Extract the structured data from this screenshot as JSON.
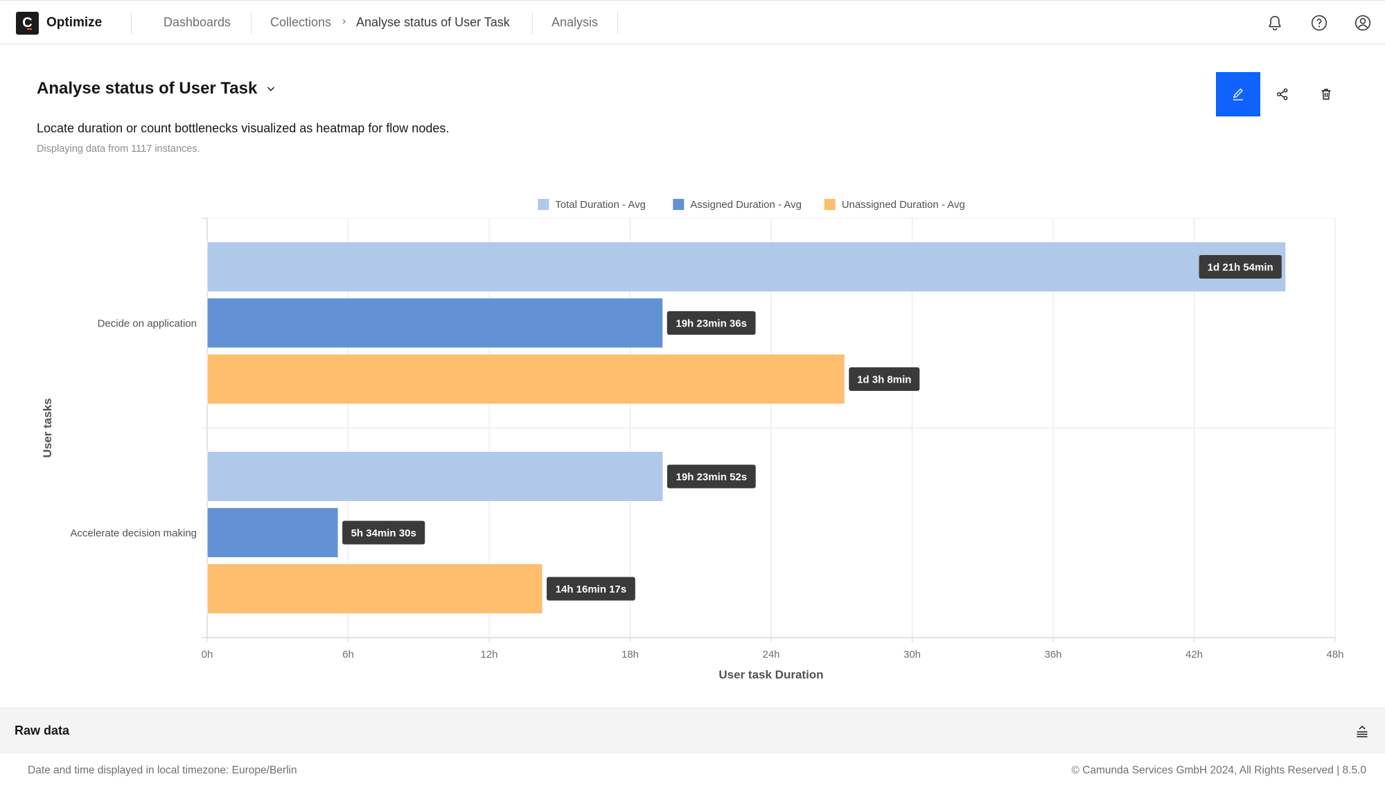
{
  "header": {
    "brand": "Optimize",
    "nav": {
      "dashboards": "Dashboards",
      "collections": "Collections",
      "breadcrumb_separator": "›",
      "current_report": "Analyse status of User Task",
      "analysis": "Analysis"
    },
    "icons": [
      "bell-icon",
      "help-icon",
      "user-icon"
    ]
  },
  "report": {
    "title": "Analyse status of User Task",
    "description": "Locate duration or count bottlenecks visualized as heatmap for flow nodes.",
    "instances_note": "Displaying data from 1117 instances.",
    "actions": [
      "edit-icon",
      "share-icon",
      "delete-icon"
    ],
    "accent_color": "#0f62fe"
  },
  "chart_data": {
    "type": "bar",
    "orientation": "horizontal",
    "categories": [
      "Decide on application",
      "Accelerate decision making"
    ],
    "xlabel": "User task Duration",
    "ylabel": "User tasks",
    "x_unit": "hours",
    "xlim": [
      0,
      48
    ],
    "x_ticks": [
      "0h",
      "6h",
      "12h",
      "18h",
      "24h",
      "30h",
      "36h",
      "42h",
      "48h"
    ],
    "grid": true,
    "legend_position": "top",
    "series": [
      {
        "name": "Total Duration - Avg",
        "color": "#b0c8ea",
        "values": [
          45.9,
          19.398
        ],
        "labels": [
          "1d 21h 54min",
          "19h 23min 52s"
        ]
      },
      {
        "name": "Assigned Duration - Avg",
        "color": "#6391d5",
        "values": [
          19.393,
          5.575
        ],
        "labels": [
          "19h 23min 36s",
          "5h 34min 30s"
        ]
      },
      {
        "name": "Unassigned Duration - Avg",
        "color": "#ffbd6e",
        "values": [
          27.133,
          14.271
        ],
        "labels": [
          "1d 3h 8min",
          "14h 16min 17s"
        ]
      }
    ]
  },
  "raw_data": {
    "title": "Raw data",
    "toggle_icon": "expand-icon"
  },
  "footer": {
    "timezone": "Date and time displayed in local timezone: Europe/Berlin",
    "copyright": "© Camunda Services GmbH 2024, All Rights Reserved | 8.5.0"
  }
}
